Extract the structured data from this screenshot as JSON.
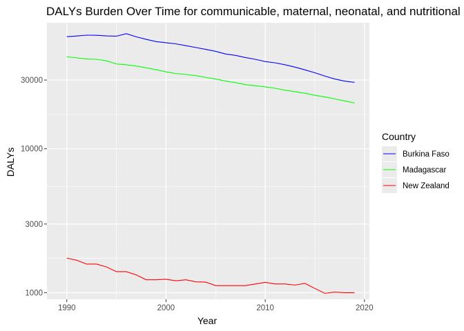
{
  "chart_data": {
    "type": "line",
    "title": "DALYs Burden Over Time for communicable, maternal, neonatal, and nutritional diseases",
    "xlabel": "Year",
    "ylabel": "DALYs",
    "xlim": [
      1988,
      2020.5
    ],
    "ylim": [
      900,
      75000
    ],
    "y_scale": "log10",
    "x_ticks": [
      1990,
      2000,
      2010,
      2020
    ],
    "y_ticks": [
      1000,
      3000,
      10000,
      30000
    ],
    "y_tick_labels": [
      "1000",
      "3000",
      "10000",
      "30000"
    ],
    "grid": true,
    "legend_position": "right",
    "legend_title": "Country",
    "x": [
      1990,
      1991,
      1992,
      1993,
      1994,
      1995,
      1996,
      1997,
      1998,
      1999,
      2000,
      2001,
      2002,
      2003,
      2004,
      2005,
      2006,
      2007,
      2008,
      2009,
      2010,
      2011,
      2012,
      2013,
      2014,
      2015,
      2016,
      2017,
      2018,
      2019
    ],
    "series": [
      {
        "name": "Burkina Faso",
        "color": "#0000ff",
        "values": [
          60000,
          60700,
          61500,
          61400,
          60800,
          60500,
          63000,
          59900,
          57500,
          55500,
          54500,
          53500,
          52000,
          50500,
          49000,
          47500,
          45500,
          44500,
          43000,
          41800,
          40300,
          39500,
          38300,
          36900,
          35300,
          33700,
          32000,
          30500,
          29500,
          28900
        ]
      },
      {
        "name": "Madagascar",
        "color": "#00ff00",
        "values": [
          43500,
          42800,
          42000,
          41800,
          40800,
          38800,
          38300,
          37500,
          36500,
          35400,
          34200,
          33300,
          32800,
          32200,
          31300,
          30500,
          29500,
          28800,
          27900,
          27400,
          26900,
          26300,
          25500,
          24900,
          24300,
          23500,
          22900,
          22200,
          21500,
          20800
        ]
      },
      {
        "name": "New Zealand",
        "color": "#ff0000",
        "values": [
          1740,
          1680,
          1580,
          1580,
          1510,
          1400,
          1400,
          1330,
          1230,
          1230,
          1240,
          1210,
          1230,
          1190,
          1185,
          1120,
          1120,
          1120,
          1120,
          1150,
          1180,
          1150,
          1150,
          1130,
          1160,
          1070,
          990,
          1010,
          1000,
          1000
        ]
      }
    ]
  }
}
